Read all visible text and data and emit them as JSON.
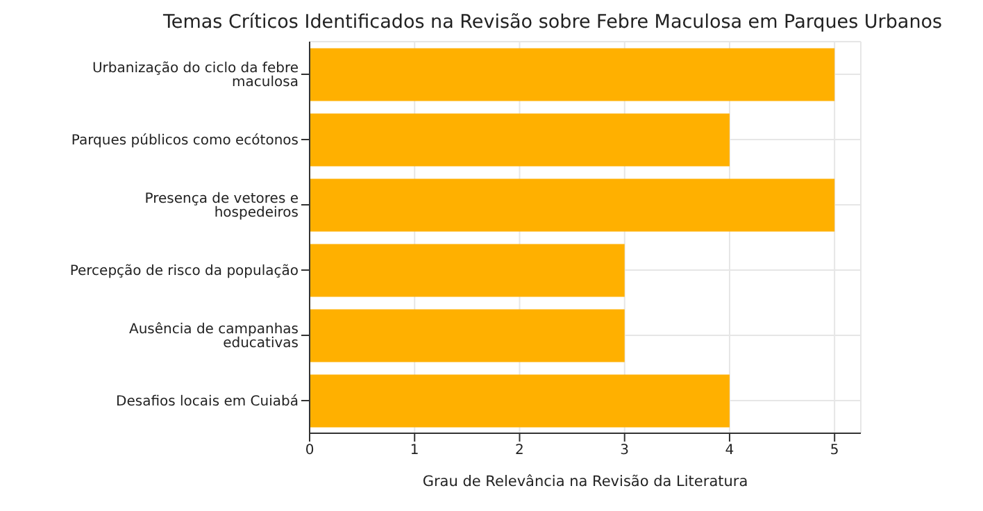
{
  "chart_data": {
    "type": "bar",
    "orientation": "horizontal",
    "title": "Temas Críticos Identificados na Revisão sobre Febre Maculosa em Parques Urbanos",
    "xlabel": "Grau de Relevância na Revisão da Literatura",
    "categories": [
      "Urbanização do ciclo da febre maculosa",
      "Parques públicos como ecótonos",
      "Presença de vetores e hospedeiros",
      "Percepção de risco da população",
      "Ausência de campanhas educativas",
      "Desafios locais em Cuiabá"
    ],
    "values": [
      5,
      4,
      5,
      3,
      3,
      4
    ],
    "color": "#ffb000",
    "xlim": [
      0,
      5.25
    ],
    "xticks": [
      0,
      1,
      2,
      3,
      4,
      5
    ],
    "grid": true
  }
}
